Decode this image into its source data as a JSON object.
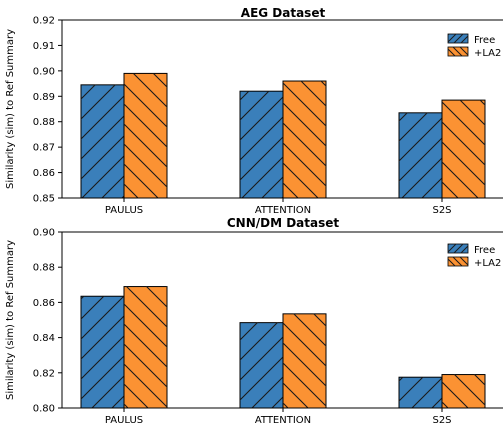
{
  "ylabel": "Similarity (sim) to Ref Summary",
  "legend": {
    "free": "Free",
    "la2": "+LA2"
  },
  "colors": {
    "free": "#3a7fba",
    "la2": "#fb9233",
    "hatch": "#1a1a1a"
  },
  "chart_data": [
    {
      "type": "bar",
      "title": "AEG Dataset",
      "categories": [
        "PAULUS",
        "ATTENTION",
        "S2S"
      ],
      "series": [
        {
          "name": "Free",
          "values": [
            0.8945,
            0.892,
            0.8835
          ]
        },
        {
          "name": "+LA2",
          "values": [
            0.899,
            0.896,
            0.8885
          ]
        }
      ],
      "ylim": [
        0.85,
        0.92
      ],
      "yticks": [
        "0.85",
        "0.86",
        "0.87",
        "0.88",
        "0.89",
        "0.90",
        "0.91",
        "0.92"
      ],
      "ylabel": "Similarity (sim) to Ref Summary",
      "legend_position": "top-right",
      "grid": false
    },
    {
      "type": "bar",
      "title": "CNN/DM Dataset",
      "categories": [
        "PAULUS",
        "ATTENTION",
        "S2S"
      ],
      "series": [
        {
          "name": "Free",
          "values": [
            0.8635,
            0.8485,
            0.8175
          ]
        },
        {
          "name": "+LA2",
          "values": [
            0.869,
            0.8535,
            0.819
          ]
        }
      ],
      "ylim": [
        0.8,
        0.9
      ],
      "yticks": [
        "0.80",
        "0.82",
        "0.84",
        "0.86",
        "0.88",
        "0.90"
      ],
      "ylabel": "Similarity (sim) to Ref Summary",
      "legend_position": "top-right",
      "grid": false
    }
  ]
}
